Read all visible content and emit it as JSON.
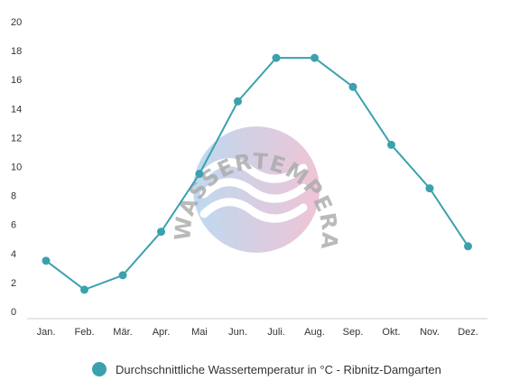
{
  "chart_data": {
    "type": "line",
    "title": "",
    "xlabel": "",
    "ylabel": "",
    "categories": [
      "Jan.",
      "Feb.",
      "Mär.",
      "Apr.",
      "Mai",
      "Jun.",
      "Juli.",
      "Aug.",
      "Sep.",
      "Okt.",
      "Nov.",
      "Dez."
    ],
    "series": [
      {
        "name": "Durchschnittliche Wassertemperatur in °C - Ribnitz-Damgarten",
        "values": [
          3.5,
          1.5,
          2.5,
          5.5,
          9.5,
          14.5,
          17.5,
          17.5,
          15.5,
          11.5,
          8.5,
          4.5
        ],
        "color": "#3aa1ad"
      }
    ],
    "ylim": [
      0,
      20
    ],
    "yticks": [
      0,
      2,
      4,
      6,
      8,
      10,
      12,
      14,
      16,
      18,
      20
    ],
    "grid": false,
    "legend_position": "bottom-center"
  },
  "watermark": {
    "text": "WASSERTEMPERATUR.ORG",
    "gradient_start": "#a8cdea",
    "gradient_end": "#eab0c8"
  }
}
